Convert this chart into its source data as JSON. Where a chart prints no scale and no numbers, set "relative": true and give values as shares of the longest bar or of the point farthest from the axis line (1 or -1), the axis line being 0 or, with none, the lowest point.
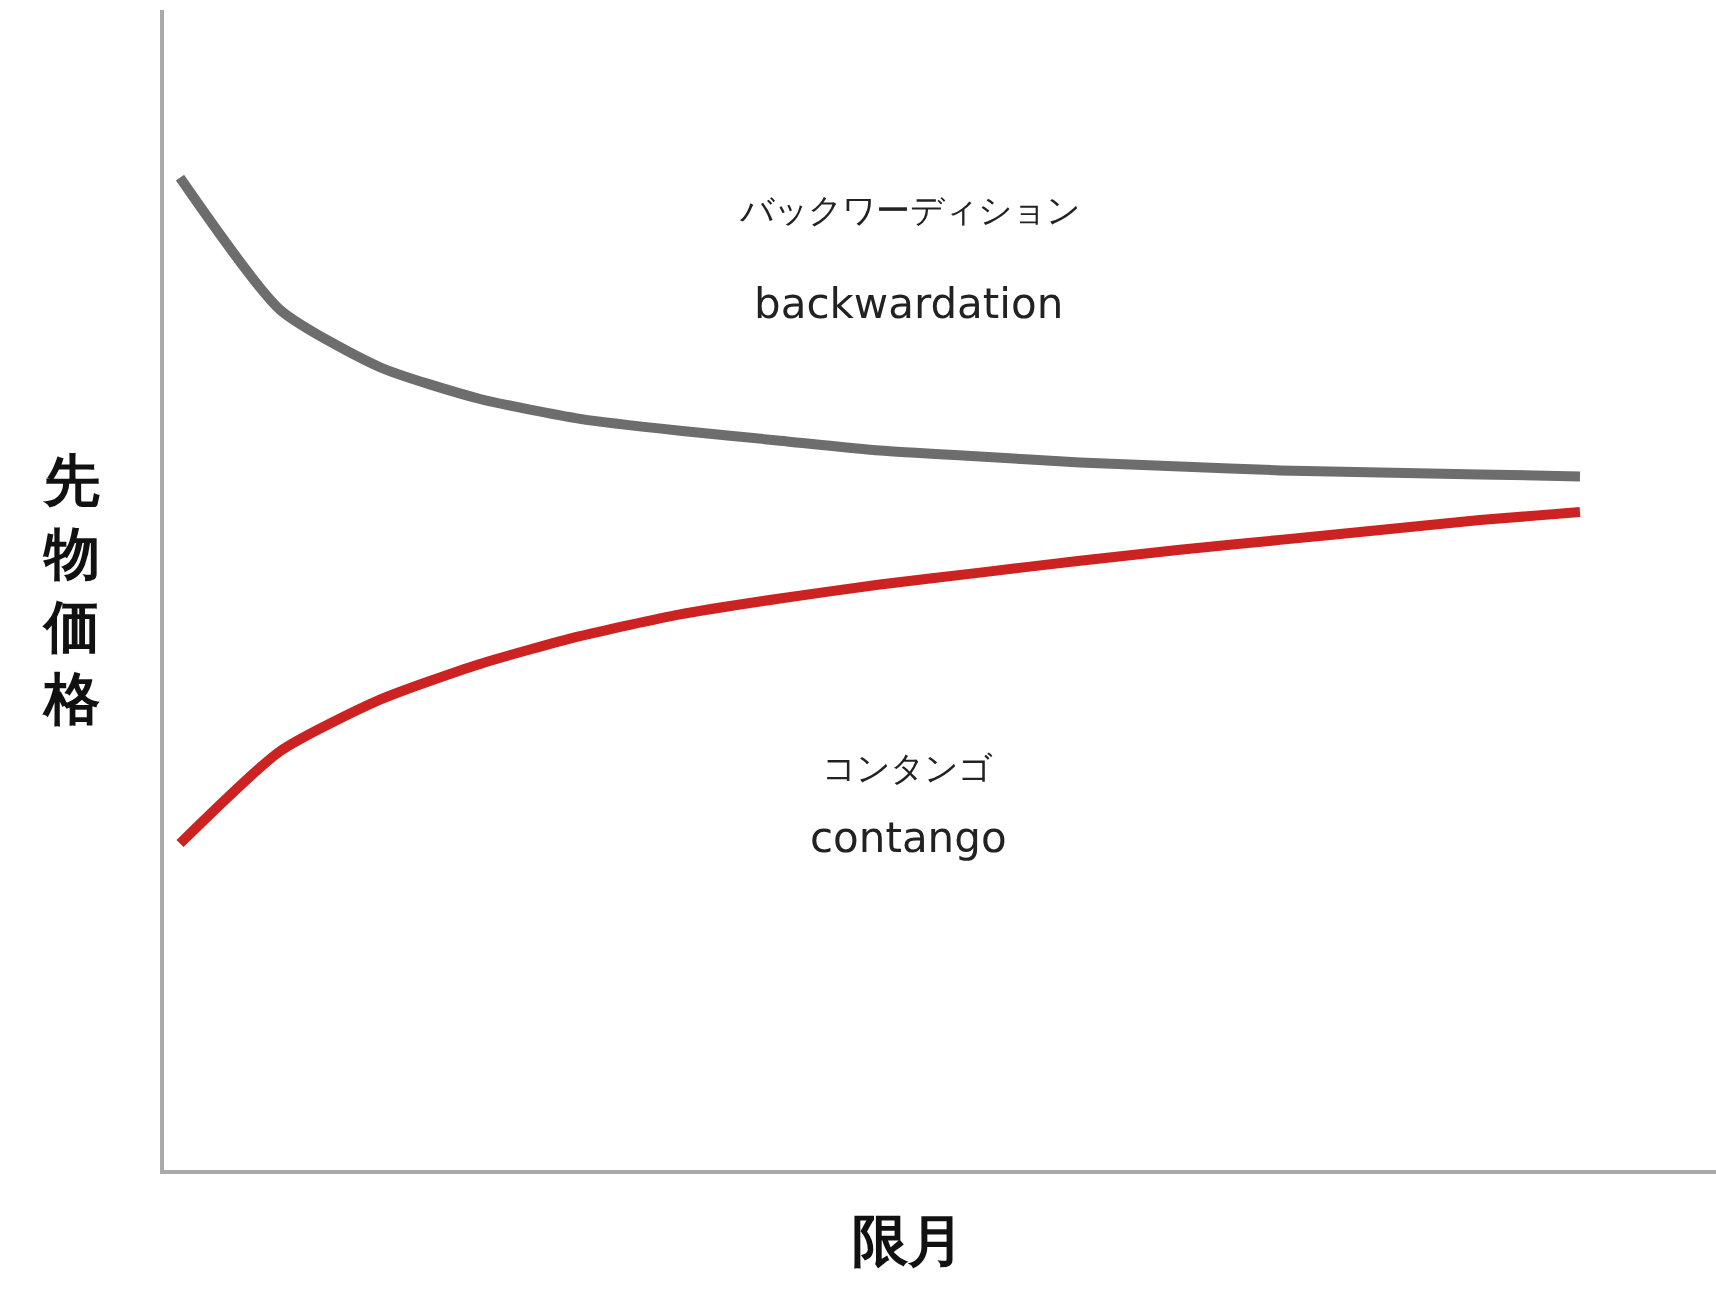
{
  "chart_data": {
    "type": "line",
    "relative": true,
    "xlabel": "限月",
    "ylabel": "先物価格",
    "categories": [
      null,
      null,
      null,
      null,
      null,
      null,
      null,
      null,
      null,
      null,
      null,
      null,
      null,
      null,
      null
    ],
    "series": [
      {
        "color": "#6d6d6d",
        "values": [
          1.0,
          0.867,
          0.809,
          0.777,
          0.757,
          0.745,
          0.735,
          0.725,
          0.719,
          0.713,
          0.709,
          0.705,
          0.703,
          0.701,
          0.699
        ]
      },
      {
        "color": "#cc2222",
        "values": [
          0.329,
          0.422,
          0.474,
          0.51,
          0.538,
          0.56,
          0.576,
          0.59,
          0.602,
          0.614,
          0.625,
          0.635,
          0.645,
          0.655,
          0.663
        ]
      }
    ],
    "annotations": [
      "バックワーディション",
      "backwardation",
      "コンタンゴ",
      "contango"
    ],
    "marker": "none",
    "line_style": "solid"
  }
}
